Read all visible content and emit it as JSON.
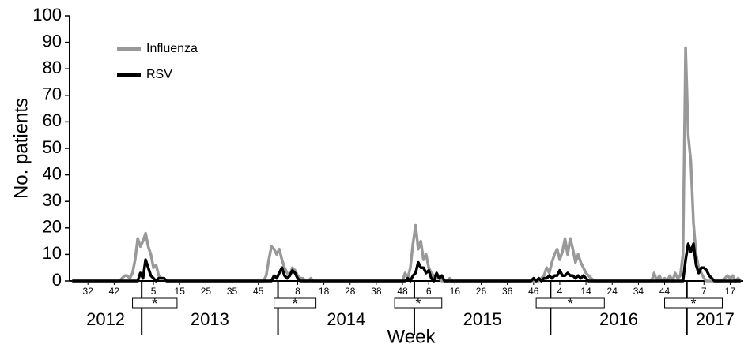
{
  "chart_data": {
    "type": "line",
    "y_label": "No. patients",
    "x_label": "Week",
    "xlim": [
      25,
      282
    ],
    "ylim": [
      0,
      100
    ],
    "yticks": [
      0,
      10,
      20,
      30,
      40,
      50,
      60,
      70,
      80,
      90,
      100
    ],
    "xticks": [
      32,
      42,
      {
        "value": 57,
        "label": "5"
      },
      {
        "value": 67,
        "label": "15"
      },
      {
        "value": 77,
        "label": "25"
      },
      {
        "value": 87,
        "label": "35"
      },
      {
        "value": 97,
        "label": "45"
      },
      {
        "value": 112,
        "label": "8"
      },
      {
        "value": 122,
        "label": "18"
      },
      {
        "value": 132,
        "label": "28"
      },
      {
        "value": 142,
        "label": "38"
      },
      {
        "value": 152,
        "label": "48"
      },
      {
        "value": 162,
        "label": "6"
      },
      {
        "value": 172,
        "label": "16"
      },
      {
        "value": 182,
        "label": "26"
      },
      {
        "value": 192,
        "label": "36"
      },
      {
        "value": 202,
        "label": "46"
      },
      {
        "value": 212,
        "label": "4"
      },
      {
        "value": 222,
        "label": "14"
      },
      {
        "value": 232,
        "label": "24"
      },
      {
        "value": 242,
        "label": "34"
      },
      {
        "value": 252,
        "label": "44"
      },
      {
        "value": 267,
        "label": "7"
      },
      {
        "value": 277,
        "label": "17"
      }
    ],
    "years": [
      "2012",
      "2013",
      "2014",
      "2015",
      "2016",
      "2017"
    ],
    "period_label": "*",
    "periods": [
      {
        "start": 49,
        "end": 66
      },
      {
        "start": 103,
        "end": 119
      },
      {
        "start": 149,
        "end": 167
      },
      {
        "start": 203,
        "end": 229
      },
      {
        "start": 252,
        "end": 274
      }
    ],
    "series": [
      {
        "name": "Influenza",
        "color": "#999999",
        "x": [
          26,
          44,
          45,
          46,
          47,
          48,
          49,
          50,
          51,
          52,
          53,
          54,
          55,
          56,
          57,
          58,
          59,
          60,
          61,
          62,
          98,
          99,
          100,
          101,
          102,
          103,
          104,
          105,
          106,
          107,
          108,
          109,
          110,
          111,
          112,
          113,
          114,
          115,
          116,
          117,
          118,
          151,
          152,
          153,
          154,
          155,
          156,
          157,
          158,
          159,
          160,
          161,
          162,
          163,
          164,
          165,
          166,
          167,
          168,
          169,
          170,
          171,
          203,
          204,
          205,
          206,
          207,
          208,
          209,
          210,
          211,
          212,
          213,
          214,
          215,
          216,
          217,
          218,
          219,
          220,
          221,
          222,
          223,
          224,
          225,
          246,
          247,
          248,
          249,
          250,
          251,
          252,
          253,
          254,
          255,
          256,
          257,
          258,
          259,
          260,
          261,
          262,
          263,
          264,
          265,
          266,
          267,
          268,
          269,
          270,
          271,
          272,
          273,
          274,
          275,
          276,
          277,
          278,
          279,
          280,
          281
        ],
        "values": [
          0,
          0,
          1,
          2,
          2,
          1,
          3,
          8,
          16,
          13,
          15,
          18,
          13,
          10,
          5,
          6,
          2,
          1,
          1,
          0,
          0,
          0,
          2,
          8,
          13,
          12,
          10,
          12,
          8,
          5,
          3,
          2,
          5,
          4,
          2,
          1,
          1,
          0,
          0,
          1,
          0,
          0,
          0,
          3,
          1,
          5,
          14,
          21,
          12,
          15,
          8,
          10,
          5,
          3,
          2,
          1,
          1,
          0,
          0,
          0,
          1,
          0,
          0,
          0,
          1,
          2,
          5,
          3,
          7,
          10,
          12,
          8,
          11,
          16,
          10,
          16,
          12,
          7,
          10,
          7,
          5,
          3,
          2,
          1,
          0,
          0,
          0,
          3,
          0,
          2,
          0,
          1,
          0,
          2,
          0,
          3,
          1,
          2,
          10,
          88,
          55,
          45,
          22,
          10,
          5,
          3,
          1,
          0,
          0,
          0,
          0,
          0,
          0,
          0,
          1,
          2,
          1,
          2,
          0,
          1,
          0
        ]
      },
      {
        "name": "RSV",
        "color": "#000000",
        "x": [
          26,
          50,
          51,
          52,
          53,
          54,
          55,
          56,
          57,
          58,
          59,
          60,
          61,
          62,
          101,
          102,
          103,
          104,
          105,
          106,
          107,
          108,
          109,
          110,
          111,
          112,
          113,
          152,
          153,
          154,
          155,
          156,
          157,
          158,
          159,
          160,
          161,
          162,
          163,
          164,
          165,
          166,
          167,
          168,
          201,
          202,
          203,
          204,
          205,
          206,
          207,
          208,
          209,
          210,
          211,
          212,
          213,
          214,
          215,
          216,
          217,
          218,
          219,
          220,
          221,
          222,
          223,
          258,
          259,
          260,
          261,
          262,
          263,
          264,
          265,
          266,
          267,
          268,
          269,
          270,
          271,
          281
        ],
        "values": [
          0,
          0,
          0,
          3,
          1,
          8,
          5,
          2,
          1,
          0,
          1,
          1,
          1,
          0,
          0,
          0,
          2,
          1,
          3,
          5,
          2,
          1,
          2,
          4,
          3,
          1,
          0,
          0,
          0,
          1,
          0,
          2,
          3,
          7,
          5,
          5,
          3,
          4,
          1,
          0,
          3,
          1,
          2,
          0,
          0,
          1,
          0,
          1,
          0,
          1,
          1,
          2,
          1,
          2,
          2,
          4,
          2,
          2,
          3,
          2,
          2,
          1,
          2,
          1,
          2,
          1,
          0,
          0,
          0,
          8,
          14,
          11,
          14,
          6,
          3,
          5,
          5,
          4,
          2,
          1,
          0,
          0
        ]
      }
    ]
  }
}
